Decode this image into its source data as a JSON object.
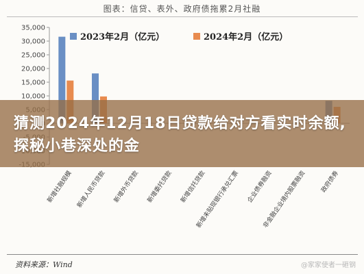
{
  "page": {
    "top_title": "图表：信贷、表外、政府债拖累2月社融",
    "overlay_title": "猜测2024年12月18日贷款给对方看实时余额,探秘小巷深处的金",
    "source": "资料来源：Wind",
    "watermark": "@家家使者一砸钢"
  },
  "colors": {
    "series_2023": "#6a8fc4",
    "series_2024": "#e88b4f",
    "axis": "#999999",
    "overlay": "#966e46"
  },
  "chart_data": {
    "type": "bar",
    "categories": [
      "新增社融规模",
      "新增人民币贷款",
      "新增外币贷款",
      "新增委托贷款",
      "新增信托贷款",
      "新增未贴现银行承兑汇票",
      "企业债券融资",
      "非金融企业境内股票融资",
      "政府债券"
    ],
    "series": [
      {
        "name": "2023年2月（亿元）",
        "values": [
          31600,
          18200,
          0,
          0,
          0,
          0,
          0,
          0,
          8200
        ]
      },
      {
        "name": "2024年2月（亿元）",
        "values": [
          15600,
          9800,
          0,
          0,
          0,
          0,
          0,
          0,
          6000
        ]
      }
    ],
    "ylim": [
      -15000,
      35000
    ],
    "yticks": [
      "35,000",
      "30,000",
      "25,000",
      "20,000",
      "15,000",
      "10,000",
      "5,000",
      "0",
      "-5,000",
      "-10,000",
      "-15,000"
    ],
    "legend_position": "top",
    "grid": false
  }
}
